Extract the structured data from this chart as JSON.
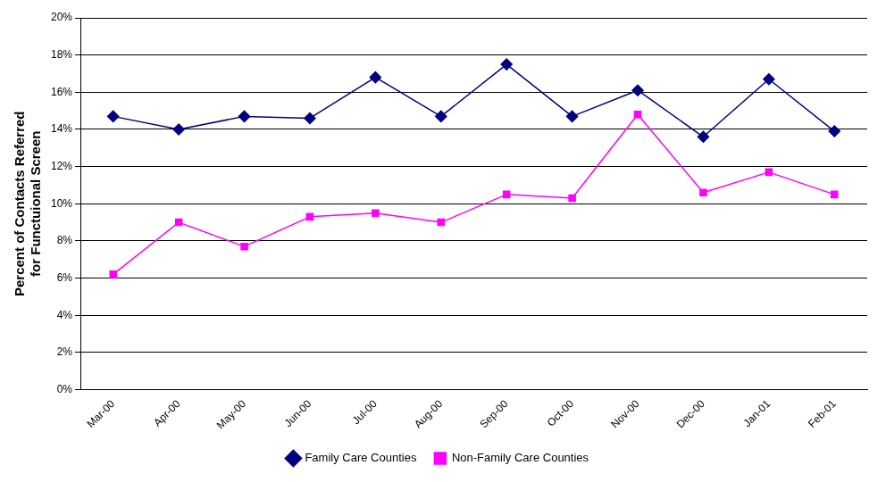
{
  "chart_data": {
    "type": "line",
    "ylabel": "Percent of Contacts Referred\nfor Functuional Screen",
    "categories": [
      "Mar-00",
      "Apr-00",
      "May-00",
      "Jun-00",
      "Jul-00",
      "Aug-00",
      "Sep-00",
      "Oct-00",
      "Nov-00",
      "Dec-00",
      "Jan-01",
      "Feb-01"
    ],
    "series": [
      {
        "name": "Family Care Counties",
        "color": "#000080",
        "marker": "diamond",
        "values": [
          14.7,
          14.0,
          14.7,
          14.6,
          16.8,
          14.7,
          17.5,
          14.7,
          16.1,
          13.6,
          16.7,
          13.9
        ]
      },
      {
        "name": "Non-Family Care Counties",
        "color": "#ff00ff",
        "marker": "square",
        "values": [
          6.2,
          9.0,
          7.7,
          9.3,
          9.5,
          9.0,
          10.5,
          10.3,
          14.8,
          10.6,
          11.7,
          10.5
        ]
      }
    ],
    "ylim": [
      0,
      20
    ],
    "yticks": [
      {
        "value": 0,
        "label": "0%"
      },
      {
        "value": 2,
        "label": "2%"
      },
      {
        "value": 4,
        "label": "4%"
      },
      {
        "value": 6,
        "label": "6%"
      },
      {
        "value": 8,
        "label": "8%"
      },
      {
        "value": 10,
        "label": "10%"
      },
      {
        "value": 12,
        "label": "12%"
      },
      {
        "value": 14,
        "label": "14%"
      },
      {
        "value": 16,
        "label": "16%"
      },
      {
        "value": 18,
        "label": "18%"
      },
      {
        "value": 20,
        "label": "20%"
      }
    ],
    "grid": "y",
    "legend": "bottom",
    "line_style": "solid"
  }
}
